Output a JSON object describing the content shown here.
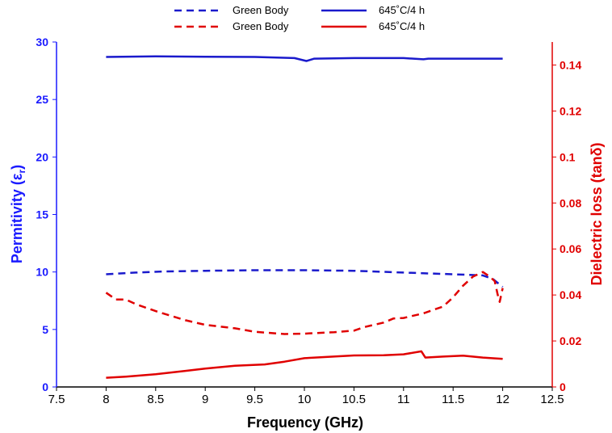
{
  "chart_data": {
    "type": "line",
    "xlabel": "Frequency (GHz)",
    "ylabel_left": "Permitivity (εr)",
    "ylabel_left_main": "Permitivity (ε",
    "ylabel_left_sub": "r",
    "ylabel_left_close": ")",
    "ylabel_right": "Dielectric loss (tanδ)",
    "xlim": [
      7.5,
      12.5
    ],
    "ylim_left": [
      0,
      30
    ],
    "ylim_right": [
      0,
      0.15
    ],
    "x_ticks": [
      "7.5",
      "8",
      "8.5",
      "9",
      "9.5",
      "10",
      "10.5",
      "11",
      "11.5",
      "12",
      "12.5"
    ],
    "y_left_ticks": [
      "0",
      "5",
      "10",
      "15",
      "20",
      "25",
      "30"
    ],
    "y_right_ticks": [
      "0",
      "0.02",
      "0.04",
      "0.06",
      "0.08",
      "0.1",
      "0.12",
      "0.14"
    ],
    "grid": false,
    "legend_position": "top",
    "colors": {
      "left_axis": "#1a1aff",
      "right_axis": "#e00000",
      "permittivity": "#1a1acc",
      "loss": "#e00000"
    },
    "series": [
      {
        "name": "Green Body",
        "axis": "left",
        "dash": "dashed",
        "color": "#1a1acc",
        "x": [
          8.0,
          8.3,
          8.6,
          9.0,
          9.5,
          10.0,
          10.5,
          11.0,
          11.5,
          11.8,
          11.9,
          12.0
        ],
        "y": [
          9.8,
          9.95,
          10.05,
          10.1,
          10.15,
          10.15,
          10.1,
          9.95,
          9.8,
          9.7,
          9.4,
          8.7
        ]
      },
      {
        "name": "645˚C/4 h",
        "axis": "left",
        "dash": "solid",
        "color": "#1a1acc",
        "x": [
          8.0,
          8.5,
          9.0,
          9.5,
          9.9,
          10.02,
          10.1,
          10.5,
          11.0,
          11.2,
          11.25,
          11.5,
          12.0
        ],
        "y": [
          28.7,
          28.75,
          28.72,
          28.7,
          28.6,
          28.35,
          28.55,
          28.6,
          28.6,
          28.5,
          28.55,
          28.55,
          28.55
        ]
      },
      {
        "name": "Green Body",
        "axis": "right",
        "dash": "dashed",
        "color": "#e00000",
        "x": [
          8.0,
          8.1,
          8.2,
          8.3,
          8.5,
          8.8,
          9.0,
          9.3,
          9.5,
          9.8,
          10.0,
          10.3,
          10.5,
          10.6,
          10.8,
          10.9,
          11.0,
          11.2,
          11.4,
          11.5,
          11.6,
          11.7,
          11.8,
          11.87,
          11.92,
          11.95,
          11.97,
          12.0
        ],
        "y": [
          0.041,
          0.038,
          0.038,
          0.036,
          0.033,
          0.029,
          0.027,
          0.0255,
          0.024,
          0.023,
          0.0232,
          0.0238,
          0.0245,
          0.026,
          0.028,
          0.0298,
          0.03,
          0.032,
          0.035,
          0.039,
          0.044,
          0.048,
          0.05,
          0.048,
          0.046,
          0.04,
          0.037,
          0.043
        ]
      },
      {
        "name": "645˚C/4 h",
        "axis": "right",
        "dash": "solid",
        "color": "#e00000",
        "x": [
          8.0,
          8.2,
          8.5,
          8.8,
          9.0,
          9.3,
          9.6,
          9.8,
          10.0,
          10.2,
          10.5,
          10.8,
          11.0,
          11.18,
          11.22,
          11.4,
          11.6,
          11.8,
          12.0
        ],
        "y": [
          0.004,
          0.0045,
          0.0055,
          0.007,
          0.008,
          0.0092,
          0.0098,
          0.011,
          0.0125,
          0.013,
          0.0137,
          0.0138,
          0.0142,
          0.0155,
          0.0128,
          0.0132,
          0.0136,
          0.0128,
          0.0122
        ]
      }
    ]
  }
}
